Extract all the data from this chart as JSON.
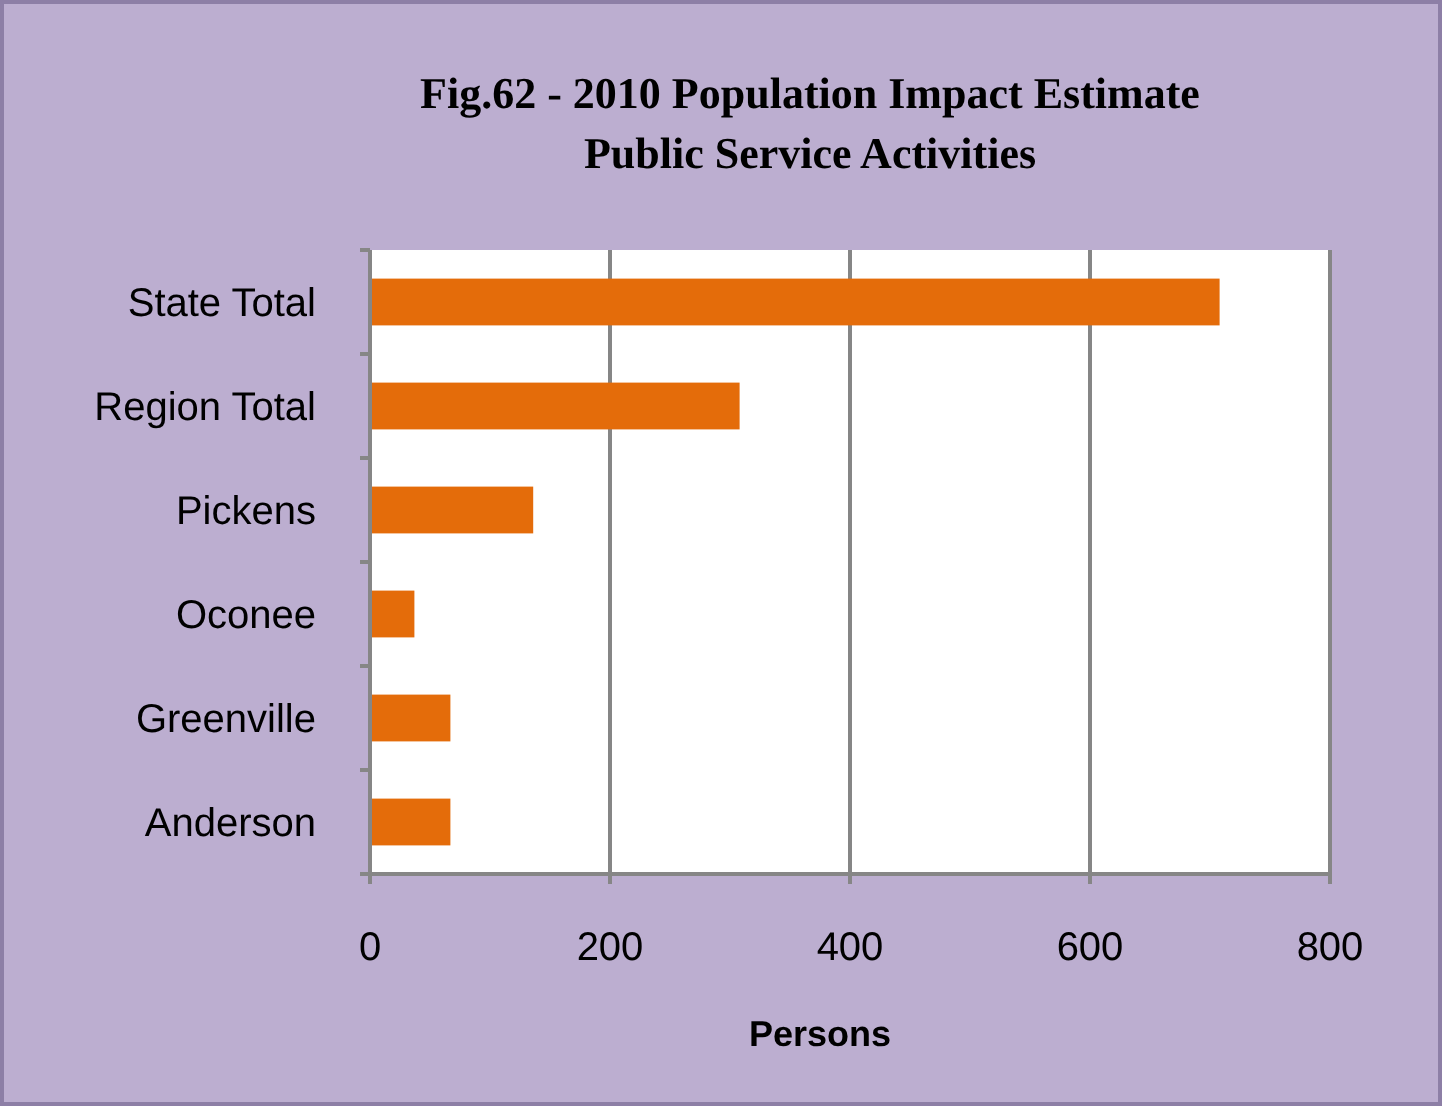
{
  "chart_data": {
    "type": "bar",
    "orientation": "horizontal",
    "title": "Fig.62 - 2010 Population Impact Estimate\nPublic Service Activities",
    "xlabel": "Persons",
    "categories": [
      "State Total",
      "Region Total",
      "Pickens",
      "Oconee",
      "Greenville",
      "Anderson"
    ],
    "values": [
      708,
      308,
      136,
      37,
      67,
      67
    ],
    "color": "#e46c0a",
    "xlim": [
      0,
      800
    ],
    "xticks": [
      0,
      200,
      400,
      600,
      800
    ],
    "grid": "x"
  }
}
